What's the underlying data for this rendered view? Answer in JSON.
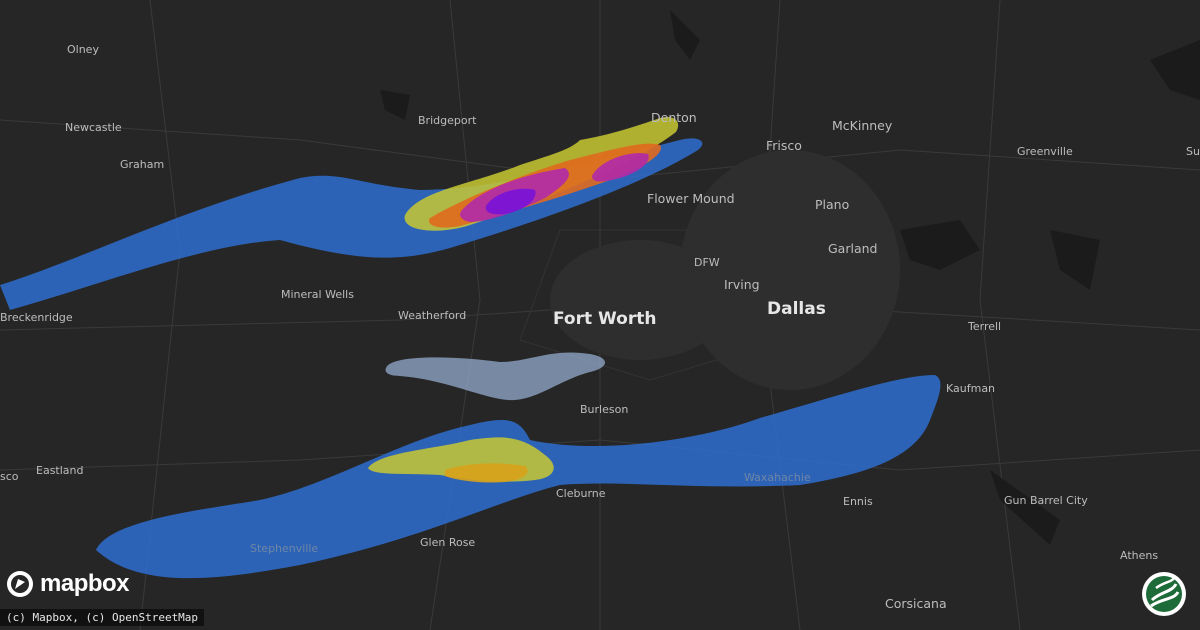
{
  "cities": {
    "olney": "Olney",
    "newcastle": "Newcastle",
    "graham": "Graham",
    "breckenridge": "Breckenridge",
    "bridgeport": "Bridgeport",
    "denton": "Denton",
    "mckinney": "McKinney",
    "frisco": "Frisco",
    "greenville": "Greenville",
    "sulphur": "Su",
    "flower_mound": "Flower Mound",
    "plano": "Plano",
    "garland": "Garland",
    "dfw": "DFW",
    "irving": "Irving",
    "mineral_wells": "Mineral Wells",
    "weatherford": "Weatherford",
    "fort_worth": "Fort Worth",
    "dallas": "Dallas",
    "terrell": "Terrell",
    "kaufman": "Kaufman",
    "burleson": "Burleson",
    "eastland": "Eastland",
    "cisco": "sco",
    "waxahachie": "Waxahachie",
    "cleburne": "Cleburne",
    "ennis": "Ennis",
    "gun_barrel_city": "Gun Barrel City",
    "stephenville": "Stephenville",
    "glen_rose": "Glen Rose",
    "athens": "Athens",
    "corsicana": "Corsicana"
  },
  "colors": {
    "background": "#262626",
    "swath_blue": "#2f6fd0",
    "swath_light": "#9bb4d8",
    "swath_yellow": "#c8c832",
    "swath_orange": "#e06a1e",
    "swath_magenta": "#b02aa8",
    "swath_purple": "#7a14d6"
  },
  "branding": {
    "mapbox": "mapbox",
    "attribution": "(c) Mapbox, (c) OpenStreetMap"
  },
  "icons": {
    "mapbox_logo": "mapbox-logo-icon",
    "site_logo": "hail-swirl-logo-icon"
  }
}
